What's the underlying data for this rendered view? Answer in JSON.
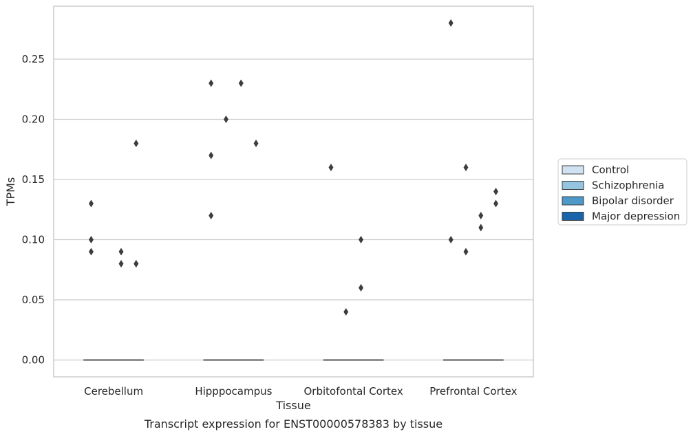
{
  "chart_data": {
    "type": "boxplot",
    "title": "",
    "caption": "Transcript expression for ENST00000578383 by tissue",
    "xlabel": "Tissue",
    "ylabel": "TPMs",
    "ylim": [
      -0.014,
      0.294
    ],
    "yticks": [
      0.0,
      0.05,
      0.1,
      0.15,
      0.2,
      0.25
    ],
    "ytick_labels": [
      "0.00",
      "0.05",
      "0.10",
      "0.15",
      "0.20",
      "0.25"
    ],
    "grid": "horizontal",
    "legend_position": "right",
    "categories": [
      "Cerebellum",
      "Hipppocampus",
      "Orbitofontal Cortex",
      "Prefrontal Cortex"
    ],
    "series": [
      {
        "name": "Control",
        "color": "#d0e1f1"
      },
      {
        "name": "Schizophrenia",
        "color": "#94c4df"
      },
      {
        "name": "Bipolar disorder",
        "color": "#4b98c9"
      },
      {
        "name": "Major depression",
        "color": "#1764ab"
      }
    ],
    "boxes": [
      [
        {
          "median": 0,
          "q1": 0,
          "q3": 0,
          "outliers": [
            0.13,
            0.1,
            0.09
          ]
        },
        {
          "median": 0,
          "q1": 0,
          "q3": 0,
          "outliers": []
        },
        {
          "median": 0,
          "q1": 0,
          "q3": 0,
          "outliers": [
            0.09,
            0.08
          ]
        },
        {
          "median": 0,
          "q1": 0,
          "q3": 0,
          "outliers": [
            0.18,
            0.08,
            0.08
          ]
        }
      ],
      [
        {
          "median": 0,
          "q1": 0,
          "q3": 0,
          "outliers": [
            0.23,
            0.17,
            0.12
          ]
        },
        {
          "median": 0,
          "q1": 0,
          "q3": 0,
          "outliers": [
            0.2
          ]
        },
        {
          "median": 0,
          "q1": 0,
          "q3": 0,
          "outliers": [
            0.23
          ]
        },
        {
          "median": 0,
          "q1": 0,
          "q3": 0,
          "outliers": [
            0.18
          ]
        }
      ],
      [
        {
          "median": 0,
          "q1": 0,
          "q3": 0,
          "outliers": [
            0.16
          ]
        },
        {
          "median": 0,
          "q1": 0,
          "q3": 0,
          "outliers": [
            0.04
          ]
        },
        {
          "median": 0,
          "q1": 0,
          "q3": 0,
          "outliers": [
            0.1,
            0.06
          ]
        },
        {
          "median": 0,
          "q1": 0,
          "q3": 0,
          "outliers": []
        }
      ],
      [
        {
          "median": 0,
          "q1": 0,
          "q3": 0,
          "outliers": [
            0.28,
            0.1
          ]
        },
        {
          "median": 0,
          "q1": 0,
          "q3": 0,
          "outliers": [
            0.16,
            0.09
          ]
        },
        {
          "median": 0,
          "q1": 0,
          "q3": 0,
          "outliers": [
            0.12,
            0.11
          ]
        },
        {
          "median": 0,
          "q1": 0,
          "q3": 0,
          "outliers": [
            0.14,
            0.13
          ]
        }
      ]
    ]
  }
}
